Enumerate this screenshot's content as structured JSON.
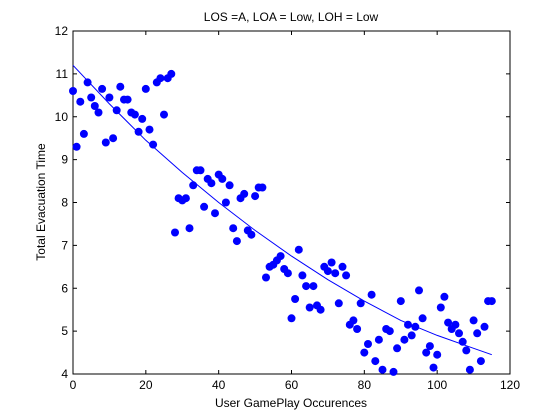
{
  "chart_data": {
    "type": "scatter",
    "title": "LOS =A, LOA = Low, LOH = Low",
    "xlabel": "User GamePlay Occurences",
    "ylabel": "Total Evacuation Time",
    "xlim": [
      0,
      120
    ],
    "ylim": [
      4,
      12
    ],
    "xticks": [
      "0",
      "20",
      "40",
      "60",
      "80",
      "100",
      "120"
    ],
    "yticks": [
      "4",
      "5",
      "6",
      "7",
      "8",
      "9",
      "10",
      "11",
      "12"
    ],
    "grid": false,
    "legend": "none",
    "marker_color": "#0000ff",
    "fit_color": "#0000ff",
    "points": {
      "x": [
        0,
        1,
        2,
        3,
        4,
        5,
        6,
        7,
        8,
        9,
        10,
        11,
        12,
        13,
        14,
        15,
        16,
        17,
        18,
        19,
        20,
        21,
        22,
        23,
        24,
        25,
        26,
        27,
        28,
        29,
        30,
        31,
        32,
        33,
        34,
        35,
        36,
        37,
        38,
        39,
        40,
        41,
        42,
        43,
        44,
        45,
        46,
        47,
        48,
        49,
        50,
        51,
        52,
        53,
        54,
        55,
        56,
        57,
        58,
        59,
        60,
        61,
        62,
        63,
        64,
        65,
        66,
        67,
        68,
        69,
        70,
        71,
        72,
        73,
        74,
        75,
        76,
        77,
        78,
        79,
        80,
        81,
        82,
        83,
        84,
        85,
        86,
        87,
        88,
        89,
        90,
        91,
        92,
        93,
        94,
        95,
        96,
        97,
        98,
        99,
        100,
        101,
        102,
        103,
        104,
        105,
        106,
        107,
        108,
        109,
        110,
        111,
        112,
        113,
        114,
        115
      ],
      "y": [
        10.6,
        9.3,
        10.35,
        9.6,
        10.8,
        10.45,
        10.25,
        10.1,
        10.65,
        9.4,
        10.45,
        9.5,
        10.15,
        10.7,
        10.4,
        10.4,
        10.1,
        10.05,
        9.65,
        9.95,
        10.65,
        9.7,
        9.35,
        10.8,
        10.9,
        10.05,
        10.9,
        11.0,
        7.3,
        8.1,
        8.05,
        8.1,
        7.4,
        8.4,
        8.75,
        8.75,
        7.9,
        8.55,
        8.45,
        7.75,
        8.65,
        8.55,
        8.0,
        8.4,
        7.4,
        7.1,
        8.1,
        8.2,
        7.35,
        7.25,
        8.15,
        8.35,
        8.35,
        6.25,
        6.5,
        6.55,
        6.65,
        6.75,
        6.45,
        6.35,
        5.3,
        5.75,
        6.9,
        6.3,
        6.05,
        5.55,
        6.05,
        5.6,
        5.5,
        6.5,
        6.4,
        6.6,
        6.35,
        5.65,
        6.5,
        6.3,
        5.15,
        5.25,
        5.05,
        5.65,
        4.5,
        4.7,
        5.85,
        4.3,
        4.8,
        4.1,
        5.05,
        5.0,
        4.05,
        4.6,
        5.7,
        4.8,
        5.15,
        4.9,
        5.1,
        5.95,
        5.3,
        4.5,
        4.65,
        4.15,
        4.45,
        5.55,
        5.8,
        5.2,
        5.05,
        5.15,
        4.95,
        4.75,
        4.55,
        4.1,
        5.25,
        4.95,
        4.3,
        5.1,
        5.7,
        5.7
      ]
    },
    "fit_line": {
      "x": [
        0,
        10,
        20,
        30,
        40,
        50,
        60,
        70,
        80,
        90,
        100,
        110,
        115
      ],
      "y": [
        11.2,
        10.3,
        9.45,
        8.7,
        8.0,
        7.35,
        6.75,
        6.2,
        5.7,
        5.25,
        4.9,
        4.6,
        4.45
      ]
    }
  }
}
